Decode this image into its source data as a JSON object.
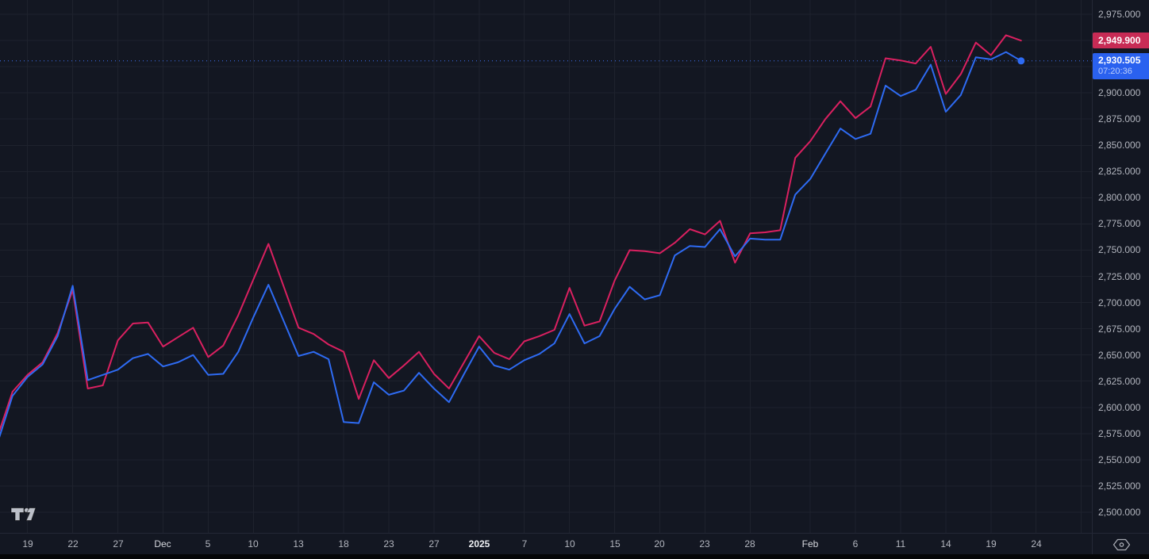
{
  "colors": {
    "background": "#131722",
    "grid": "#1e222d",
    "pink_line": "#da2060",
    "pink_badge_bg": "#c82b55",
    "blue_line": "#2e6bf3",
    "blue_badge_bg": "#2a61ef",
    "blue_dotted_line": "#3f74f6",
    "axis_text": "#b2b5be",
    "axis_text_bright": "#d6d8de"
  },
  "chart_data": {
    "type": "line",
    "title": "",
    "xlabel": "",
    "ylabel": "",
    "ylim": [
      2500,
      2975
    ],
    "y_tick_step": 25,
    "grid": true,
    "legend": "none",
    "x": [
      "Nov 15",
      "Nov 18",
      "Nov 19",
      "Nov 20",
      "Nov 21",
      "Nov 22",
      "Nov 25",
      "Nov 26",
      "Nov 27",
      "Nov 28",
      "Nov 29",
      "Dec 2",
      "Dec 3",
      "Dec 4",
      "Dec 5",
      "Dec 6",
      "Dec 9",
      "Dec 10",
      "Dec 11",
      "Dec 12",
      "Dec 13",
      "Dec 16",
      "Dec 17",
      "Dec 18",
      "Dec 19",
      "Dec 20",
      "Dec 23",
      "Dec 24",
      "Dec 26",
      "Dec 27",
      "Dec 30",
      "Dec 31",
      "Jan 2",
      "Jan 3",
      "Jan 6",
      "Jan 7",
      "Jan 8",
      "Jan 9",
      "Jan 10",
      "Jan 13",
      "Jan 14",
      "Jan 15",
      "Jan 16",
      "Jan 17",
      "Jan 20",
      "Jan 21",
      "Jan 22",
      "Jan 23",
      "Jan 24",
      "Jan 27",
      "Jan 28",
      "Jan 29",
      "Jan 30",
      "Jan 31",
      "Feb 3",
      "Feb 4",
      "Feb 5",
      "Feb 6",
      "Feb 7",
      "Feb 10",
      "Feb 11",
      "Feb 12",
      "Feb 13",
      "Feb 14",
      "Feb 17",
      "Feb 18",
      "Feb 19",
      "Feb 20",
      "Feb 21"
    ],
    "series": [
      {
        "name": "pink-series",
        "color": "#da2060",
        "values": [
          2572,
          2615,
          2631,
          2643,
          2671,
          2712,
          2618,
          2621,
          2664,
          2680,
          2681,
          2658,
          2667,
          2676,
          2648,
          2659,
          2688,
          2722,
          2756,
          2716,
          2676,
          2670,
          2660,
          2653,
          2608,
          2645,
          2628,
          2640,
          2653,
          2632,
          2618,
          2643,
          2668,
          2652,
          2646,
          2663,
          2668,
          2674,
          2714,
          2678,
          2682,
          2721,
          2750,
          2749,
          2747,
          2757,
          2770,
          2765,
          2778,
          2738,
          2766,
          2767,
          2769,
          2838,
          2854,
          2875,
          2892,
          2876,
          2887,
          2933,
          2931,
          2928,
          2944,
          2899,
          2918,
          2948,
          2936,
          2955,
          2949.9
        ],
        "last_value": 2949.9
      },
      {
        "name": "blue-series",
        "color": "#2e6bf3",
        "values": [
          2566,
          2611,
          2629,
          2641,
          2668,
          2716,
          2626,
          2631,
          2636,
          2647,
          2651,
          2639,
          2643,
          2650,
          2631,
          2632,
          2653,
          2686,
          2717,
          2683,
          2649,
          2653,
          2646,
          2586,
          2585,
          2624,
          2612,
          2616,
          2633,
          2618,
          2605,
          2632,
          2658,
          2640,
          2636,
          2645,
          2651,
          2661,
          2689,
          2661,
          2668,
          2694,
          2715,
          2703,
          2707,
          2745,
          2754,
          2753,
          2770,
          2744,
          2761,
          2760,
          2760,
          2803,
          2818,
          2842,
          2866,
          2856,
          2861,
          2907,
          2897,
          2903,
          2927,
          2882,
          2898,
          2934,
          2932,
          2939,
          2930.505
        ],
        "last_value": 2930.505,
        "marker_on_last": true,
        "dotted_price_line": true
      }
    ],
    "x_ticks": [
      {
        "i": 2,
        "label": "19"
      },
      {
        "i": 5,
        "label": "22"
      },
      {
        "i": 8,
        "label": "27"
      },
      {
        "i": 11,
        "label": "Dec",
        "major": true
      },
      {
        "i": 14,
        "label": "5"
      },
      {
        "i": 17,
        "label": "10"
      },
      {
        "i": 20,
        "label": "13"
      },
      {
        "i": 23,
        "label": "18"
      },
      {
        "i": 26,
        "label": "23"
      },
      {
        "i": 29,
        "label": "27"
      },
      {
        "i": 32,
        "label": "2025",
        "major": true,
        "year": true
      },
      {
        "i": 35,
        "label": "7"
      },
      {
        "i": 38,
        "label": "10"
      },
      {
        "i": 41,
        "label": "15"
      },
      {
        "i": 44,
        "label": "20"
      },
      {
        "i": 47,
        "label": "23"
      },
      {
        "i": 50,
        "label": "28"
      },
      {
        "i": 54,
        "label": "Feb",
        "major": true
      },
      {
        "i": 57,
        "label": "6"
      },
      {
        "i": 60,
        "label": "11"
      },
      {
        "i": 63,
        "label": "14"
      },
      {
        "i": 66,
        "label": "19"
      },
      {
        "i": 69,
        "label": "24"
      },
      {
        "i": 72,
        "label": ""
      }
    ]
  },
  "price_axis": {
    "labels": [
      {
        "value": 2975,
        "text": "2,975.000"
      },
      {
        "value": 2900,
        "text": "2,900.000"
      },
      {
        "value": 2875,
        "text": "2,875.000"
      },
      {
        "value": 2850,
        "text": "2,850.000"
      },
      {
        "value": 2825,
        "text": "2,825.000"
      },
      {
        "value": 2800,
        "text": "2,800.000"
      },
      {
        "value": 2775,
        "text": "2,775.000"
      },
      {
        "value": 2750,
        "text": "2,750.000"
      },
      {
        "value": 2725,
        "text": "2,725.000"
      },
      {
        "value": 2700,
        "text": "2,700.000"
      },
      {
        "value": 2675,
        "text": "2,675.000"
      },
      {
        "value": 2650,
        "text": "2,650.000"
      },
      {
        "value": 2625,
        "text": "2,625.000"
      },
      {
        "value": 2600,
        "text": "2,600.000"
      },
      {
        "value": 2575,
        "text": "2,575.000"
      },
      {
        "value": 2550,
        "text": "2,550.000"
      },
      {
        "value": 2525,
        "text": "2,525.000"
      },
      {
        "value": 2500,
        "text": "2,500.000"
      }
    ],
    "pink_badge": {
      "text": "2,949.900",
      "value": 2949.9
    },
    "blue_badge": {
      "text": "2,930.505",
      "time": "07:20:36",
      "value": 2930.505
    }
  },
  "icons": {
    "watermark": "tradingview-logo",
    "corner": "hexagon-dot-icon"
  }
}
